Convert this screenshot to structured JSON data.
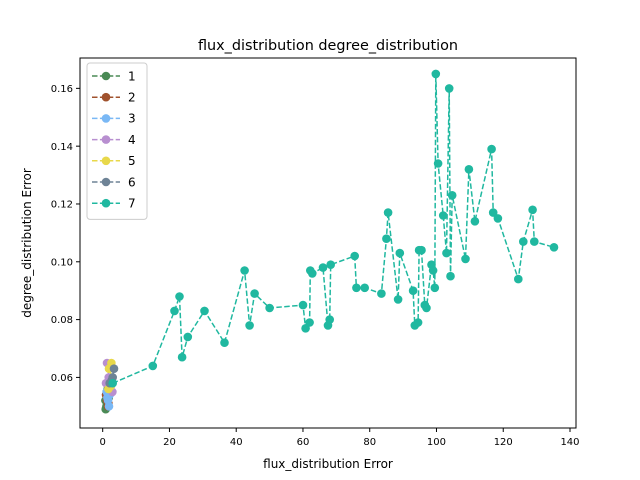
{
  "chart_data": {
    "type": "line",
    "title": "flux_distribution degree_distribution",
    "xlabel": "flux_distribution Error",
    "ylabel": "degree_distribution Error",
    "xlim": [
      -6.8,
      141.8
    ],
    "ylim": [
      0.0425,
      0.1705
    ],
    "xticks": [
      0,
      20,
      40,
      60,
      80,
      100,
      120,
      140
    ],
    "yticks": [
      0.06,
      0.08,
      0.1,
      0.12,
      0.14,
      0.16
    ],
    "ytick_labels": [
      "0.06",
      "0.08",
      "0.10",
      "0.12",
      "0.14",
      "0.16"
    ],
    "legend_position": "upper-left",
    "grid": false,
    "series": [
      {
        "name": "1",
        "color": "#4a8a55",
        "points": [
          [
            0.8,
            0.052
          ],
          [
            1.2,
            0.055
          ],
          [
            0.9,
            0.049
          ],
          [
            1.5,
            0.056
          ],
          [
            1.1,
            0.05
          ],
          [
            1.8,
            0.053
          ]
        ]
      },
      {
        "name": "2",
        "color": "#a0522d",
        "points": [
          [
            1.0,
            0.054
          ],
          [
            1.6,
            0.05
          ],
          [
            2.0,
            0.057
          ],
          [
            1.3,
            0.052
          ],
          [
            2.2,
            0.055
          ],
          [
            1.7,
            0.051
          ]
        ]
      },
      {
        "name": "3",
        "color": "#7ab8f5",
        "points": [
          [
            1.4,
            0.053
          ],
          [
            1.9,
            0.05
          ],
          [
            1.2,
            0.055
          ],
          [
            1.6,
            0.052
          ],
          [
            2.1,
            0.054
          ]
        ]
      },
      {
        "name": "4",
        "color": "#b88fd0",
        "points": [
          [
            1.3,
            0.065
          ],
          [
            2.4,
            0.057
          ],
          [
            1.0,
            0.058
          ],
          [
            2.9,
            0.055
          ],
          [
            1.8,
            0.06
          ]
        ]
      },
      {
        "name": "5",
        "color": "#e8d84a",
        "points": [
          [
            1.9,
            0.063
          ],
          [
            2.6,
            0.065
          ],
          [
            2.2,
            0.058
          ],
          [
            1.7,
            0.056
          ],
          [
            2.4,
            0.057
          ]
        ]
      },
      {
        "name": "6",
        "color": "#6e8396",
        "points": [
          [
            2.1,
            0.058
          ],
          [
            3.0,
            0.06
          ],
          [
            3.4,
            0.063
          ],
          [
            2.7,
            0.059
          ]
        ]
      },
      {
        "name": "7",
        "color": "#20b8a0",
        "points": [
          [
            3.0,
            0.058
          ],
          [
            15,
            0.064
          ],
          [
            21.5,
            0.083
          ],
          [
            23,
            0.088
          ],
          [
            23.8,
            0.067
          ],
          [
            25.5,
            0.074
          ],
          [
            30.5,
            0.083
          ],
          [
            36.5,
            0.072
          ],
          [
            42.5,
            0.097
          ],
          [
            44,
            0.078
          ],
          [
            45.5,
            0.089
          ],
          [
            50,
            0.084
          ],
          [
            60,
            0.085
          ],
          [
            60.8,
            0.077
          ],
          [
            62,
            0.079
          ],
          [
            62.2,
            0.097
          ],
          [
            62.8,
            0.096
          ],
          [
            66,
            0.098
          ],
          [
            67.5,
            0.078
          ],
          [
            68,
            0.08
          ],
          [
            68.3,
            0.099
          ],
          [
            75.5,
            0.102
          ],
          [
            76,
            0.091
          ],
          [
            78.5,
            0.091
          ],
          [
            83.5,
            0.089
          ],
          [
            85,
            0.108
          ],
          [
            85.5,
            0.117
          ],
          [
            88.5,
            0.087
          ],
          [
            89,
            0.103
          ],
          [
            93,
            0.09
          ],
          [
            93.5,
            0.078
          ],
          [
            94.5,
            0.079
          ],
          [
            94.8,
            0.104
          ],
          [
            95.5,
            0.104
          ],
          [
            96.5,
            0.085
          ],
          [
            97,
            0.084
          ],
          [
            98.5,
            0.099
          ],
          [
            99,
            0.097
          ],
          [
            99.5,
            0.091
          ],
          [
            99.8,
            0.165
          ],
          [
            100.5,
            0.134
          ],
          [
            102,
            0.116
          ],
          [
            103,
            0.103
          ],
          [
            103.8,
            0.16
          ],
          [
            104.2,
            0.095
          ],
          [
            104.7,
            0.123
          ],
          [
            108.7,
            0.101
          ],
          [
            109.7,
            0.132
          ],
          [
            111.5,
            0.114
          ],
          [
            116.5,
            0.139
          ],
          [
            117,
            0.117
          ],
          [
            118.4,
            0.115
          ],
          [
            124.5,
            0.094
          ],
          [
            126,
            0.107
          ],
          [
            128.8,
            0.118
          ],
          [
            129.3,
            0.107
          ],
          [
            135.2,
            0.105
          ]
        ]
      }
    ]
  }
}
